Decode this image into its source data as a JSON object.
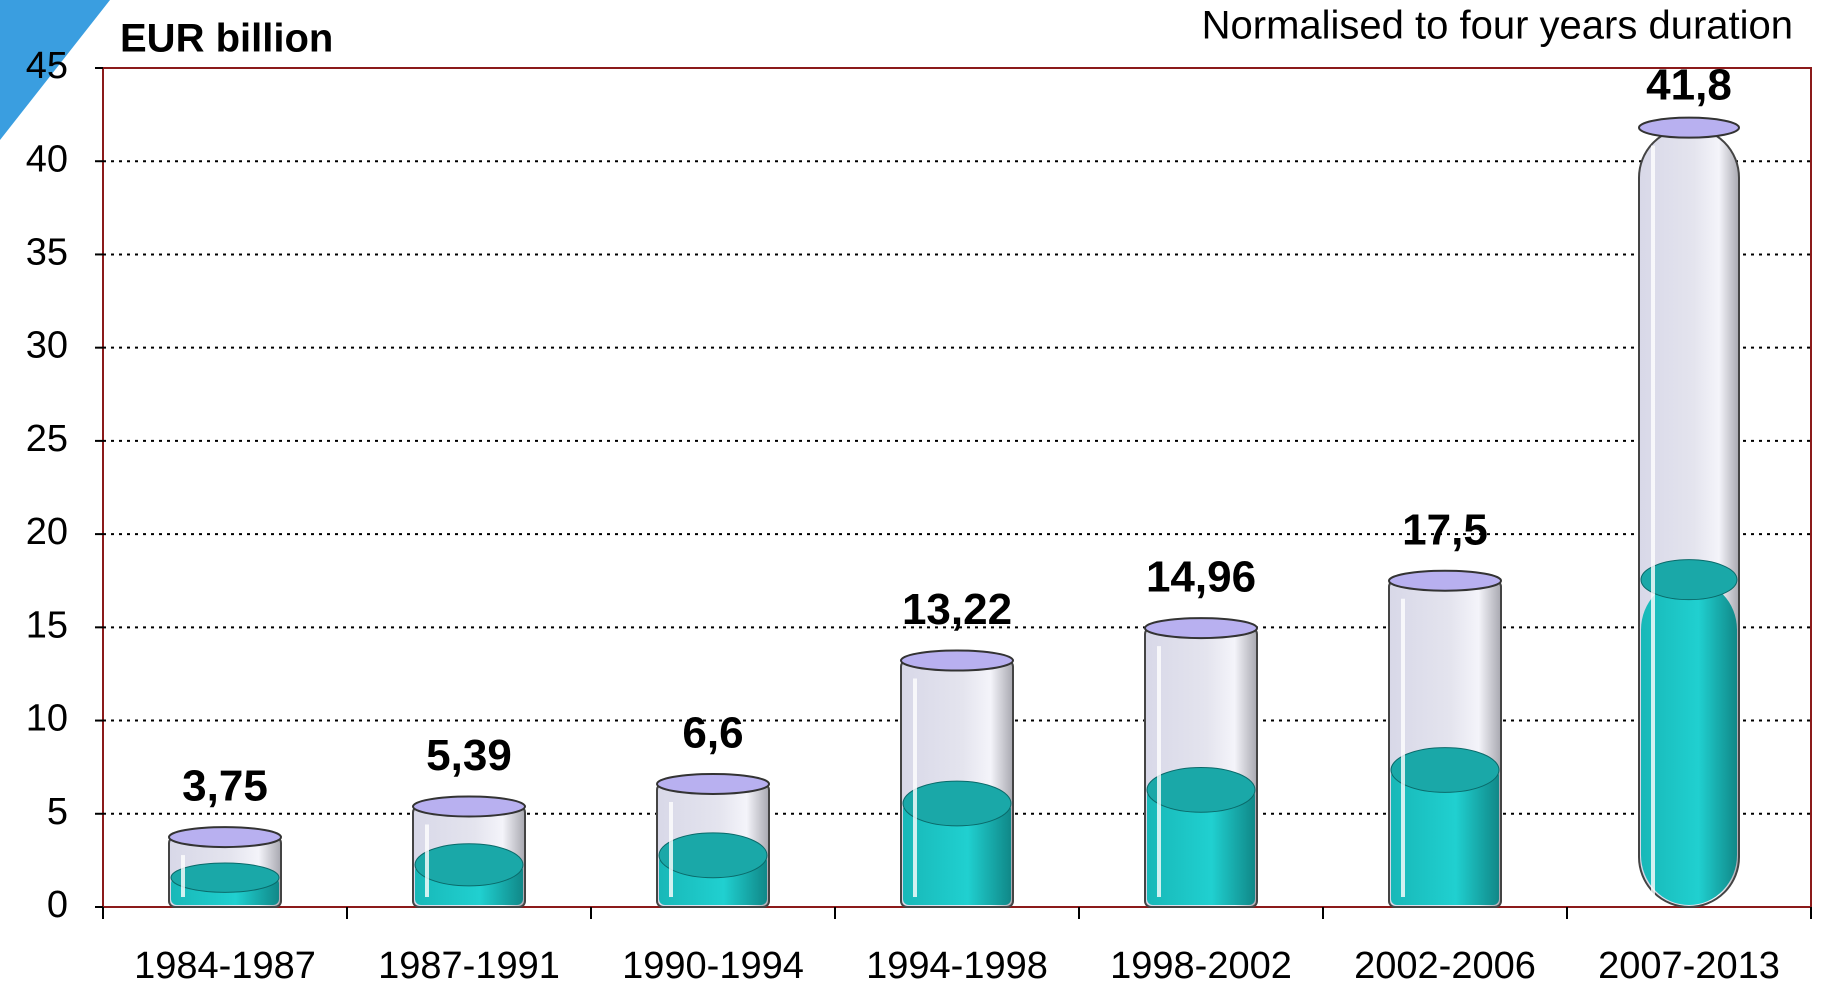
{
  "chart_data": {
    "type": "bar",
    "y_label": "EUR billion",
    "subtitle": "Normalised to four years duration",
    "categories": [
      "1984-1987",
      "1987-1991",
      "1990-1994",
      "1994-1998",
      "1998-2002",
      "2002-2006",
      "2007-2013"
    ],
    "values": [
      3.75,
      5.39,
      6.6,
      13.22,
      14.96,
      17.5,
      41.8
    ],
    "value_labels": [
      "3,75",
      "5,39",
      "6,6",
      "13,22",
      "14,96",
      "17,5",
      "41,8"
    ],
    "color": "#c8c0f0",
    "ylim": [
      0,
      45
    ],
    "yticks": [
      0,
      5,
      10,
      15,
      20,
      25,
      30,
      35,
      40,
      45
    ],
    "grid": true
  }
}
